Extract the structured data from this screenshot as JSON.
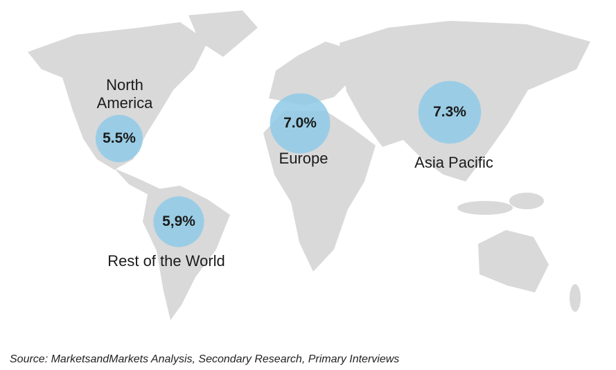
{
  "chart_data": {
    "type": "bubble-map",
    "categories": [
      "North America",
      "Europe",
      "Asia Pacific",
      "Rest of the World"
    ],
    "values": [
      5.5,
      7.0,
      7.3,
      5.9
    ],
    "value_labels": [
      "5.5%",
      "7.0%",
      "7.3%",
      "5,9%"
    ],
    "color": "#8ecae6",
    "source": "Source: MarketsandMarkets Analysis, Secondary Research, Primary Interviews"
  }
}
